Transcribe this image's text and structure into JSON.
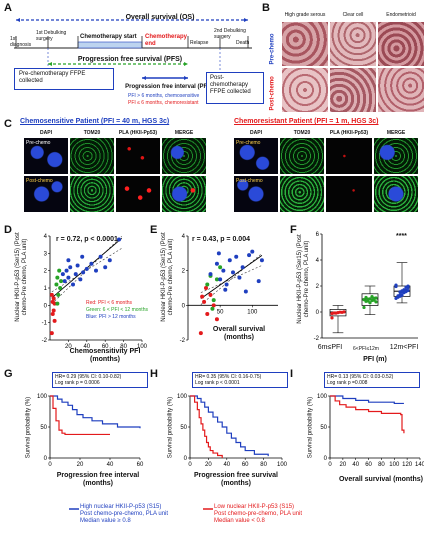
{
  "panels": {
    "A": "A",
    "B": "B",
    "C": "C",
    "D": "D",
    "E": "E",
    "F": "F",
    "G": "G",
    "H": "H",
    "I": "I"
  },
  "A": {
    "os_label": "Overall survival (OS)",
    "pfs_label": "Progression free survival (PFS)",
    "pfi_label": "Progression free interval (PFI)",
    "timeline": [
      "1st diagnosis",
      "1st Debulking surgery",
      "Chemotherapy start",
      "Chemotherapy end",
      "Relapse",
      "2nd Debulking surgery",
      "Death"
    ],
    "pre_box": "Pre-chemotherapy FFPE collected",
    "post_box": "Post-chemotherapy FFPE collected",
    "pfi_sens": "PFI > 6 months, chemosensitive",
    "pfi_res": "PFI ≤ 6 months, chemoresistant"
  },
  "B": {
    "cols": [
      "High grade serous",
      "Clear cell",
      "Endometrioid"
    ],
    "rows": [
      "Pre-chemo",
      "Post-chemo"
    ]
  },
  "C": {
    "sens_title": "Chemosensitive Patient (PFI = 40 m, HGS 3c)",
    "res_title": "Chemoresistant Patient (PFI = 1 m, HGS 3c)",
    "cols": [
      "DAPI",
      "TOM20",
      "PLA (HKII-Pp53)",
      "MERGE"
    ],
    "row_pre": "Pre-chemo",
    "row_post": "Post-chemo"
  },
  "D": {
    "ylabel": "Nuclear HKII-P-p53 (Ser15) (Post chemo-Pre chemo, PLA unit)",
    "xlabel": "Chemosensitivity PFI (months)",
    "stat": "r = 0.72, p < 0.0001",
    "legend": [
      "Red: PFI < 6 months",
      "Green: 6 < PFI < 12 months",
      "Blue: PFI > 12 months"
    ]
  },
  "E": {
    "ylabel": "Nuclear HKII-P-p53 (Ser15) (Post chemo-Pre chemo, PLA unit)",
    "xlabel": "Overall survival (months)",
    "stat": "r = 0.43, p = 0.004"
  },
  "F": {
    "ylabel": "Nuclear HKII-P-p53 (Ser15) (Post chemo-Pre chemo, PLA unit)",
    "xlabel": "PFI (m)",
    "cats": [
      "6m≤PFI",
      "6<PFI≤12m",
      "12m<PFI"
    ],
    "sig": "****"
  },
  "G": {
    "stat1": "HR= 0.29 (95% CI: 0.10-0.82)",
    "stat2": "Log rank p = 0.0006",
    "ylabel": "Survival probability (%)",
    "xlabel": "Progression free interval (months)"
  },
  "H": {
    "stat1": "HR= 0.35 (95% CI: 0.16-0.75)",
    "stat2": "Log rank p < 0.0001",
    "ylabel": "Survival probability (%)",
    "xlabel": "Progression free survival (months)"
  },
  "I": {
    "stat1": "HR= 0.13 (95% CI: 0.03-0.52)",
    "stat2": "Log rank p =0.008",
    "ylabel": "Survival probability (%)",
    "xlabel": "Overall survival (months)"
  },
  "legend": {
    "high1": "High nuclear HKII-P-p53 (S15)",
    "high2": "Post chemo-pre-chemo, PLA unit",
    "high3": "Median value ≥ 0.8",
    "low1": "Low nuclear HKII-P-p53 (S15)",
    "low2": "Post chemo-pre-chemo, PLA unit",
    "low3": "Median value < 0.8"
  },
  "chart_data": [
    {
      "type": "scatter",
      "panel": "D",
      "xlabel": "Chemosensitivity PFI (months)",
      "ylabel": "Nuclear HKII-P-p53 (Ser15) (Post chemo-Pre chemo, PLA unit)",
      "xlim": [
        0,
        100
      ],
      "ylim": [
        -2,
        4
      ],
      "xticks": [
        20,
        40,
        60,
        80,
        100
      ],
      "yticks": [
        -2,
        -1,
        0,
        1,
        2,
        3,
        4
      ],
      "series": [
        {
          "color": "#e31a1c",
          "x": [
            2,
            3,
            3,
            4,
            4,
            5,
            5,
            2
          ],
          "y": [
            -1.6,
            -0.5,
            0.2,
            -0.3,
            0.4,
            0.1,
            -0.9,
            0.6
          ]
        },
        {
          "color": "#27a327",
          "x": [
            7,
            8,
            9,
            10,
            11,
            12,
            8
          ],
          "y": [
            1.2,
            1.6,
            0.6,
            2.0,
            1.0,
            1.4,
            0.1
          ]
        },
        {
          "color": "#1f3fbf",
          "x": [
            14,
            16,
            18,
            20,
            22,
            25,
            28,
            30,
            33,
            36,
            40,
            45,
            50,
            55,
            60,
            65,
            75,
            20,
            35
          ],
          "y": [
            1.8,
            1.4,
            2.0,
            1.6,
            2.2,
            1.2,
            1.8,
            2.3,
            1.5,
            1.9,
            2.1,
            2.4,
            2.0,
            2.8,
            2.2,
            2.6,
            3.8,
            2.6,
            2.8
          ]
        }
      ]
    },
    {
      "type": "scatter",
      "panel": "E",
      "xlabel": "Overall survival (months)",
      "xlim": [
        0,
        140
      ],
      "ylim": [
        -2,
        4
      ],
      "xticks": [
        50,
        100
      ],
      "yticks": [
        -2,
        0,
        2,
        4
      ],
      "series": [
        {
          "color": "#e31a1c",
          "x": [
            20,
            25,
            30,
            35,
            40,
            45,
            22,
            28
          ],
          "y": [
            -1.6,
            0.2,
            -0.5,
            0.6,
            0.0,
            -0.8,
            0.5,
            1.0
          ]
        },
        {
          "color": "#27a327",
          "x": [
            30,
            35,
            40,
            45,
            50,
            38
          ],
          "y": [
            1.2,
            1.7,
            0.3,
            1.5,
            2.2,
            -0.2
          ]
        },
        {
          "color": "#1f3fbf",
          "x": [
            35,
            45,
            50,
            55,
            60,
            65,
            70,
            75,
            80,
            85,
            90,
            95,
            100,
            110,
            115,
            48,
            58
          ],
          "y": [
            1.8,
            2.4,
            1.5,
            2.0,
            1.2,
            2.6,
            1.9,
            2.8,
            1.6,
            2.2,
            0.8,
            2.9,
            3.1,
            1.4,
            2.6,
            3.0,
            0.9
          ]
        }
      ]
    },
    {
      "type": "box",
      "panel": "F",
      "categories": [
        "6m≤PFI",
        "6<PFI≤12m",
        "12m<PFI"
      ],
      "ylim": [
        -2,
        6
      ],
      "yticks": [
        -2,
        0,
        2,
        4,
        6
      ],
      "colors": [
        "#e31a1c",
        "#27a327",
        "#1f3fbf"
      ],
      "boxes": [
        {
          "min": -1.6,
          "q1": -0.3,
          "median": 0.0,
          "q3": 0.2,
          "max": 0.5
        },
        {
          "min": -0.2,
          "q1": 0.5,
          "median": 1.0,
          "q3": 1.4,
          "max": 2.0
        },
        {
          "min": 0.7,
          "q1": 1.2,
          "median": 1.6,
          "q3": 2.0,
          "max": 3.8
        }
      ]
    },
    {
      "type": "line",
      "panel": "G",
      "xlim": [
        0,
        60
      ],
      "ylim": [
        0,
        100
      ],
      "xticks": [
        0,
        20,
        40,
        60
      ],
      "yticks": [
        0,
        50,
        100
      ],
      "series": [
        {
          "color": "#1f3fbf",
          "x": [
            0,
            5,
            8,
            12,
            15,
            18,
            22,
            28,
            35,
            45,
            60
          ],
          "y": [
            100,
            95,
            90,
            85,
            78,
            70,
            65,
            60,
            55,
            50,
            48
          ]
        },
        {
          "color": "#e31a1c",
          "x": [
            0,
            2,
            4,
            6,
            8,
            10,
            40
          ],
          "y": [
            100,
            80,
            60,
            45,
            40,
            38,
            38
          ]
        }
      ]
    },
    {
      "type": "line",
      "panel": "H",
      "xlim": [
        0,
        100
      ],
      "ylim": [
        0,
        100
      ],
      "xticks": [
        0,
        20,
        40,
        60,
        80,
        100
      ],
      "yticks": [
        0,
        50,
        100
      ],
      "series": [
        {
          "color": "#1f3fbf",
          "x": [
            0,
            8,
            12,
            16,
            20,
            25,
            30,
            35,
            40,
            45,
            50,
            55,
            60,
            70,
            85
          ],
          "y": [
            100,
            96,
            90,
            82,
            74,
            66,
            58,
            50,
            40,
            32,
            25,
            18,
            12,
            6,
            3
          ]
        },
        {
          "color": "#e31a1c",
          "x": [
            0,
            5,
            8,
            10,
            12,
            14,
            16,
            18,
            20,
            22,
            25,
            30,
            35
          ],
          "y": [
            100,
            90,
            78,
            65,
            55,
            45,
            35,
            25,
            18,
            12,
            8,
            4,
            0
          ]
        }
      ]
    },
    {
      "type": "line",
      "panel": "I",
      "xlim": [
        0,
        140
      ],
      "ylim": [
        0,
        100
      ],
      "xticks": [
        0,
        20,
        40,
        60,
        80,
        100,
        120,
        140
      ],
      "yticks": [
        0,
        50,
        100
      ],
      "series": [
        {
          "color": "#1f3fbf",
          "x": [
            0,
            10,
            20,
            40,
            60,
            80,
            100,
            115
          ],
          "y": [
            100,
            100,
            96,
            93,
            90,
            90,
            88,
            88
          ]
        },
        {
          "color": "#e31a1c",
          "x": [
            0,
            8,
            15,
            25,
            40,
            60,
            80,
            100,
            110,
            112,
            115
          ],
          "y": [
            100,
            92,
            86,
            82,
            78,
            75,
            72,
            72,
            70,
            45,
            40
          ]
        }
      ]
    }
  ]
}
